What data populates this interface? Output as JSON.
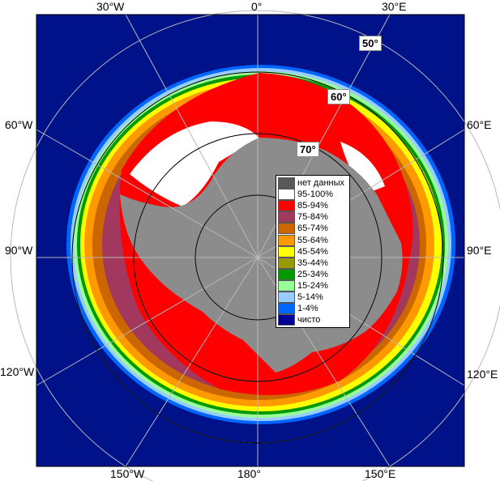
{
  "colors": {
    "ocean": "#00128a",
    "land": "#8c8c8c",
    "grid": "#b8b8b8",
    "circle": "#000000"
  },
  "labels": {
    "top": [
      "30°W",
      "0°",
      "30°E"
    ],
    "bottom": [
      "150°W",
      "180°",
      "150°E"
    ],
    "left": [
      "60°W",
      "90°W",
      "120°W"
    ],
    "right": [
      "60°E",
      "90°E",
      "120°E"
    ],
    "lat": [
      "50°",
      "60°",
      "70°"
    ]
  },
  "legend": [
    {
      "label": "нет данных",
      "color": "#595959"
    },
    {
      "label": "95-100%",
      "color": "#ffffff"
    },
    {
      "label": "85-94%",
      "color": "#ff0000"
    },
    {
      "label": "75-84%",
      "color": "#a3385f"
    },
    {
      "label": "65-74%",
      "color": "#cc6600"
    },
    {
      "label": "55-64%",
      "color": "#ff9900"
    },
    {
      "label": "45-54%",
      "color": "#ffff00"
    },
    {
      "label": "35-44%",
      "color": "#999900"
    },
    {
      "label": "25-34%",
      "color": "#009900"
    },
    {
      "label": "15-24%",
      "color": "#99ff99"
    },
    {
      "label": "5-14%",
      "color": "#99ccff"
    },
    {
      "label": "1-4%",
      "color": "#0066ff"
    },
    {
      "label": "чисто",
      "color": "#000099"
    }
  ]
}
